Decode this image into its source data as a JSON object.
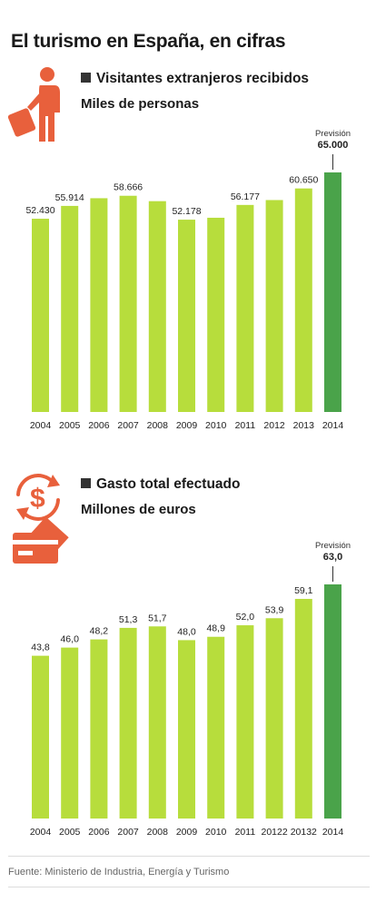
{
  "title": "El turismo en España, en cifras",
  "source": "Fuente: Ministerio de Industria, Energía y Turismo",
  "colors": {
    "bar": "#b7dd3c",
    "forecast": "#4aa34a",
    "icon": "#e8603c"
  },
  "icons": {
    "visitors": "traveler-with-suitcase-icon",
    "spending": "money-exchange-and-card-icon"
  },
  "chart_data": [
    {
      "type": "bar",
      "title": "Visitantes extranjeros recibidos",
      "subtitle": "Miles de personas",
      "categories": [
        "2004",
        "2005",
        "2006",
        "2007",
        "2008",
        "2009",
        "2010",
        "2011",
        "2012",
        "2013",
        "2014"
      ],
      "values": [
        52430,
        55914,
        58000,
        58666,
        57200,
        52178,
        52700,
        56177,
        57500,
        60650,
        65000
      ],
      "value_labels": [
        "52.430",
        "55.914",
        "",
        "58.666",
        "",
        "52.178",
        "",
        "56.177",
        "",
        "60.650",
        "65.000"
      ],
      "forecast_index": 10,
      "forecast_label": "Previsión",
      "ylim": [
        0,
        65000
      ],
      "grid": false
    },
    {
      "type": "bar",
      "title": "Gasto total efectuado",
      "subtitle": "Millones de euros",
      "categories": [
        "2004",
        "2005",
        "2006",
        "2007",
        "2008",
        "2009",
        "2010",
        "2011",
        "20122",
        "20132",
        "2014"
      ],
      "values": [
        43.8,
        46.0,
        48.2,
        51.3,
        51.7,
        48.0,
        48.9,
        52.0,
        53.9,
        59.1,
        63.0
      ],
      "value_labels": [
        "43,8",
        "46,0",
        "48,2",
        "51,3",
        "51,7",
        "48,0",
        "48,9",
        "52,0",
        "53,9",
        "59,1",
        "63,0"
      ],
      "forecast_index": 10,
      "forecast_label": "Previsión",
      "ylim": [
        0,
        63.0
      ],
      "grid": false
    }
  ]
}
